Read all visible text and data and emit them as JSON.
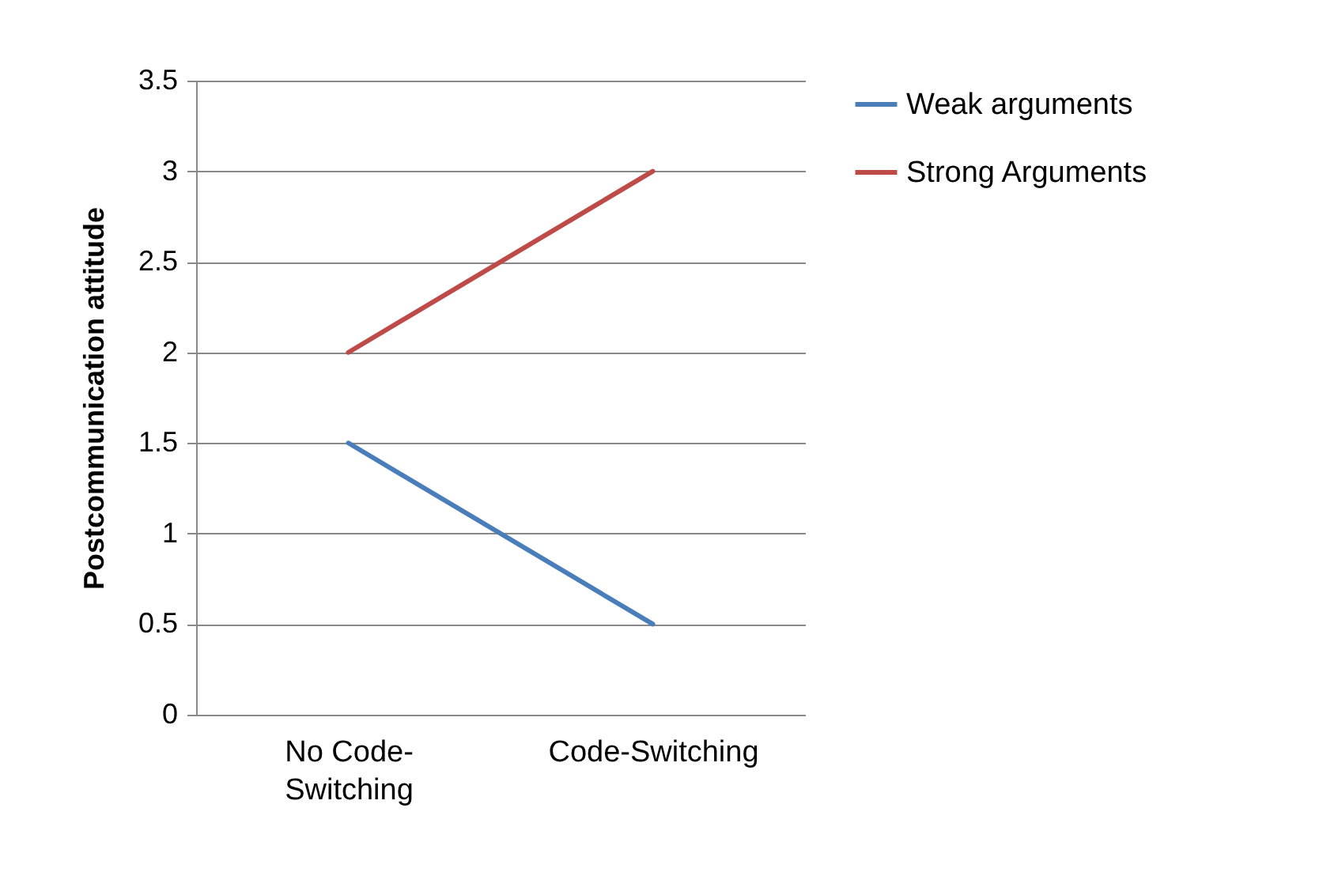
{
  "chart_data": {
    "type": "line",
    "ylabel": "Postcommunication attitude",
    "categories": [
      "No Code-Switching",
      "Code-Switching"
    ],
    "series": [
      {
        "name": "Weak arguments",
        "color": "#4a7ebb",
        "values": [
          1.5,
          0.5
        ]
      },
      {
        "name": "Strong Arguments",
        "color": "#be4b48",
        "values": [
          2,
          3
        ]
      }
    ],
    "ylim": [
      0,
      3.5
    ],
    "yticks": [
      0,
      0.5,
      1,
      1.5,
      2,
      2.5,
      3,
      3.5
    ],
    "grid": "y",
    "legend": "right",
    "marker": "none",
    "line_style": "solid"
  }
}
